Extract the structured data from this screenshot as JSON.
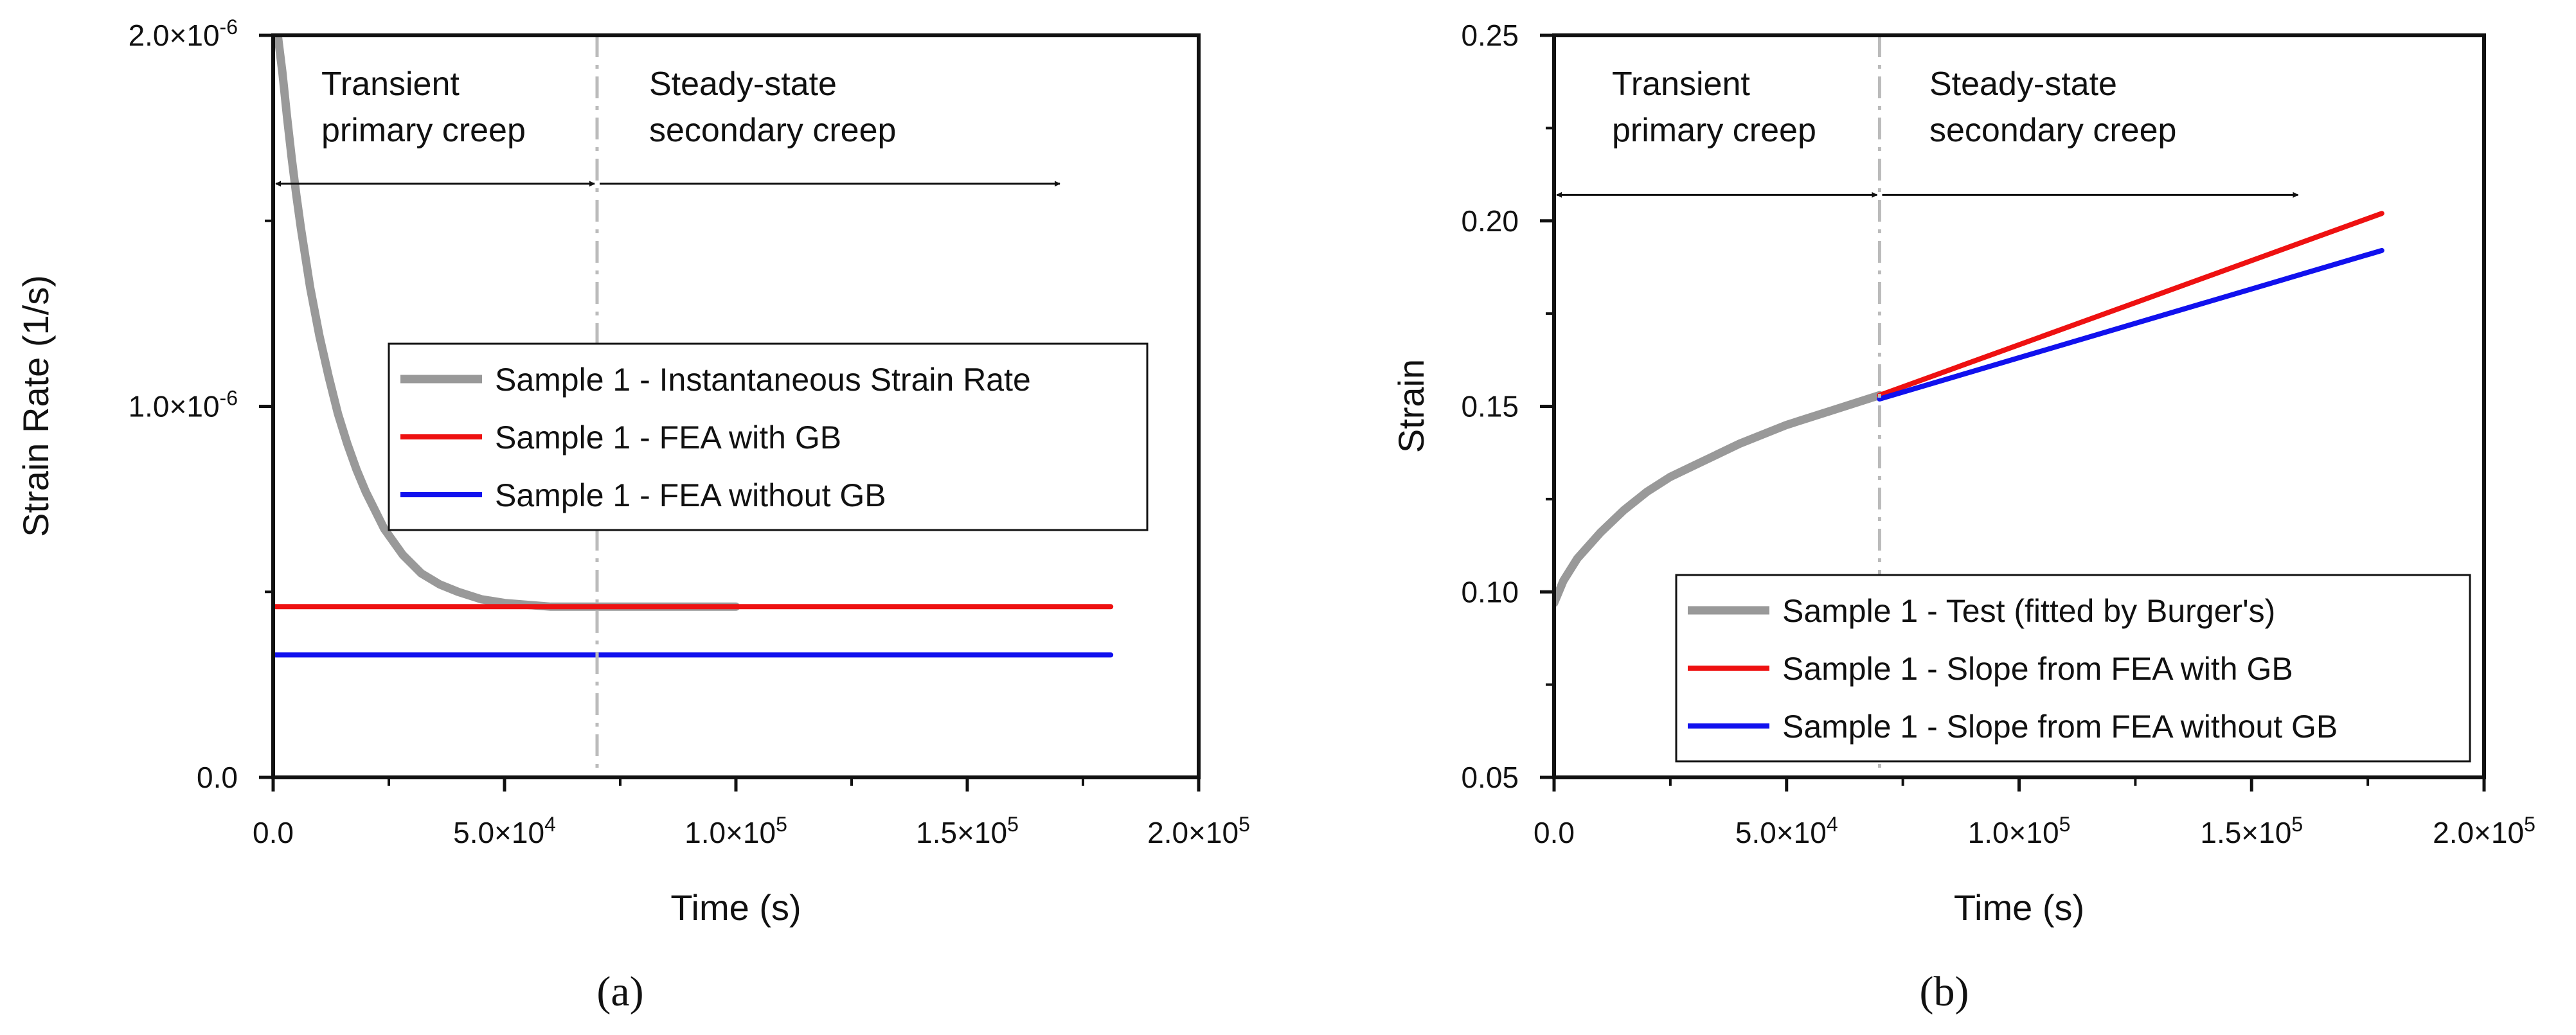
{
  "chart_data": [
    {
      "type": "line",
      "panel": "(a)",
      "xlabel": "Time (s)",
      "ylabel": "Strain Rate (1/s)",
      "xlim": [
        0,
        200000
      ],
      "ylim": [
        0,
        2e-06
      ],
      "x_ticks": [
        0,
        50000,
        100000,
        150000,
        200000
      ],
      "x_tick_labels": [
        {
          "mant": "0.0",
          "exp": ""
        },
        {
          "mant": "5.0×10",
          "exp": "4"
        },
        {
          "mant": "1.0×10",
          "exp": "5"
        },
        {
          "mant": "1.5×10",
          "exp": "5"
        },
        {
          "mant": "2.0×10",
          "exp": "5"
        }
      ],
      "y_ticks": [
        0,
        1e-06,
        2e-06
      ],
      "y_tick_labels": [
        {
          "mant": "0.0",
          "exp": ""
        },
        {
          "mant": "1.0×10",
          "exp": "-6"
        },
        {
          "mant": "2.0×10",
          "exp": "-6"
        }
      ],
      "divider_x": 70000,
      "annotations": {
        "left_line1": "Transient",
        "left_line2": "primary creep",
        "right_line1": "Steady-state",
        "right_line2": "secondary creep",
        "arrow_y": 1.6e-06,
        "left_arrow": [
          0,
          70000
        ],
        "right_arrow": [
          70000,
          170000
        ]
      },
      "series": [
        {
          "name": "Sample 1 - Instantaneous Strain Rate",
          "color": "#999999",
          "x": [
            1000,
            2000,
            3000,
            4000,
            5000,
            6000,
            7000,
            8000,
            10000,
            12000,
            14000,
            16000,
            18000,
            20000,
            24000,
            28000,
            32000,
            36000,
            40000,
            45000,
            50000,
            55000,
            60000,
            65000,
            70000,
            80000,
            90000,
            100000
          ],
          "y": [
            2e-06,
            1.9e-06,
            1.78e-06,
            1.67e-06,
            1.57e-06,
            1.48e-06,
            1.4e-06,
            1.32e-06,
            1.19e-06,
            1.08e-06,
            9.8e-07,
            9e-07,
            8.3e-07,
            7.7e-07,
            6.7e-07,
            6e-07,
            5.5e-07,
            5.2e-07,
            5e-07,
            4.8e-07,
            4.7e-07,
            4.65e-07,
            4.6e-07,
            4.6e-07,
            4.6e-07,
            4.6e-07,
            4.6e-07,
            4.6e-07
          ]
        },
        {
          "name": "Sample 1 - FEA with GB",
          "color": "#ee1111",
          "x": [
            0,
            181000
          ],
          "y": [
            4.6e-07,
            4.6e-07
          ]
        },
        {
          "name": "Sample 1 - FEA without GB",
          "color": "#1111ee",
          "x": [
            0,
            181000
          ],
          "y": [
            3.3e-07,
            3.3e-07
          ]
        }
      ]
    },
    {
      "type": "line",
      "panel": "(b)",
      "xlabel": "Time (s)",
      "ylabel": "Strain",
      "xlim": [
        0,
        200000
      ],
      "ylim": [
        0.05,
        0.25
      ],
      "x_ticks": [
        0,
        50000,
        100000,
        150000,
        200000
      ],
      "x_tick_labels": [
        {
          "mant": "0.0",
          "exp": ""
        },
        {
          "mant": "5.0×10",
          "exp": "4"
        },
        {
          "mant": "1.0×10",
          "exp": "5"
        },
        {
          "mant": "1.5×10",
          "exp": "5"
        },
        {
          "mant": "2.0×10",
          "exp": "5"
        }
      ],
      "y_ticks": [
        0.05,
        0.1,
        0.15,
        0.2,
        0.25
      ],
      "y_tick_labels": [
        {
          "mant": "0.05",
          "exp": ""
        },
        {
          "mant": "0.10",
          "exp": ""
        },
        {
          "mant": "0.15",
          "exp": ""
        },
        {
          "mant": "0.20",
          "exp": ""
        },
        {
          "mant": "0.25",
          "exp": ""
        }
      ],
      "divider_x": 70000,
      "annotations": {
        "left_line1": "Transient",
        "left_line2": "primary creep",
        "right_line1": "Steady-state",
        "right_line2": "secondary creep",
        "arrow_y": 0.207,
        "left_arrow": [
          0,
          70000
        ],
        "right_arrow": [
          70000,
          160000
        ]
      },
      "series": [
        {
          "name": "Sample 1 - Test (fitted by Burger's)",
          "color": "#999999",
          "x": [
            0,
            2000,
            5000,
            10000,
            15000,
            20000,
            25000,
            30000,
            40000,
            50000,
            60000,
            70000
          ],
          "y": [
            0.097,
            0.103,
            0.109,
            0.116,
            0.122,
            0.127,
            0.131,
            0.134,
            0.14,
            0.145,
            0.149,
            0.153
          ]
        },
        {
          "name": "Sample 1 - Slope from FEA with GB",
          "color": "#ee1111",
          "x": [
            70000,
            178000
          ],
          "y": [
            0.153,
            0.202
          ]
        },
        {
          "name": "Sample 1 - Slope from FEA without GB",
          "color": "#1111ee",
          "x": [
            70000,
            178000
          ],
          "y": [
            0.152,
            0.192
          ]
        }
      ]
    }
  ]
}
